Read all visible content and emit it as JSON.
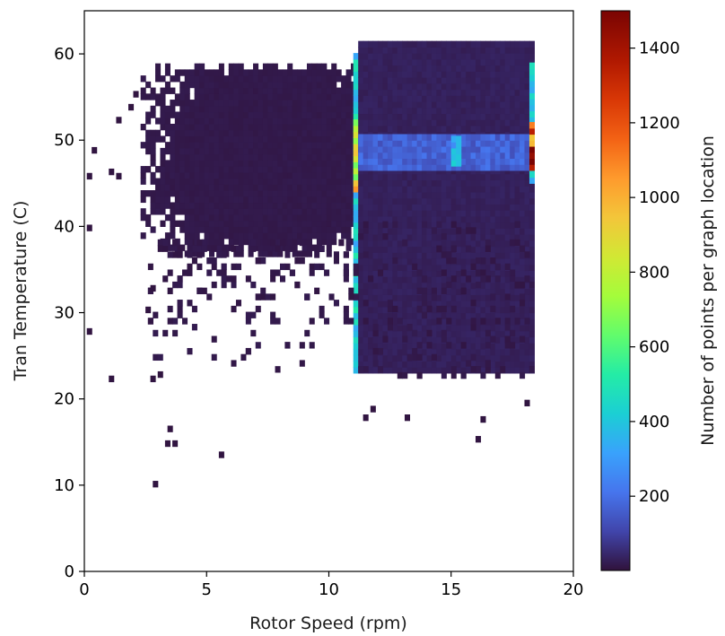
{
  "chart_data": {
    "type": "heatmap",
    "title": "",
    "xlabel": "Rotor Speed (rpm)",
    "ylabel": "Tran Temperature (C)",
    "xlim": [
      0,
      20
    ],
    "ylim": [
      0,
      65
    ],
    "x_ticks": [
      0,
      5,
      10,
      15,
      20
    ],
    "y_ticks": [
      0,
      10,
      20,
      30,
      40,
      50,
      60
    ],
    "bin_width_x": 0.2,
    "bin_width_y": 0.7,
    "grid": false,
    "colorbar": {
      "label": "Number of points per graph location",
      "range": [
        1,
        1500
      ],
      "ticks": [
        200,
        400,
        600,
        800,
        1000,
        1200,
        1400
      ],
      "colormap": "turbo"
    },
    "density_regions": [
      {
        "x": [
          2.3,
          11.0
        ],
        "y": [
          36.5,
          58.5
        ],
        "value": 15
      },
      {
        "x": [
          11.0,
          11.2
        ],
        "y": [
          23.0,
          59.5
        ],
        "value": 420
      },
      {
        "x": [
          11.0,
          11.2
        ],
        "y": [
          44.0,
          52.0
        ],
        "value": 850
      },
      {
        "x": [
          11.2,
          18.3
        ],
        "y": [
          23.0,
          61.0
        ],
        "value": 30
      },
      {
        "x": [
          11.2,
          18.3
        ],
        "y": [
          46.5,
          50.5
        ],
        "value": 170
      },
      {
        "x": [
          15.0,
          15.3
        ],
        "y": [
          47.0,
          50.0
        ],
        "value": 350
      },
      {
        "x": [
          18.2,
          18.4
        ],
        "y": [
          45.0,
          58.5
        ],
        "value": 420
      },
      {
        "x": [
          18.2,
          18.4
        ],
        "y": [
          46.5,
          51.5
        ],
        "value": 1250
      }
    ],
    "outliers": [
      [
        2.8,
        9.8
      ],
      [
        3.3,
        14.5
      ],
      [
        3.6,
        14.5
      ],
      [
        3.4,
        16.2
      ],
      [
        5.5,
        13.2
      ],
      [
        1.0,
        22.0
      ],
      [
        2.7,
        22.0
      ],
      [
        3.0,
        22.5
      ],
      [
        11.4,
        17.5
      ],
      [
        11.7,
        18.5
      ],
      [
        13.1,
        17.5
      ],
      [
        16.0,
        15.0
      ],
      [
        16.2,
        17.3
      ],
      [
        18.0,
        19.2
      ],
      [
        0.1,
        27.5
      ],
      [
        0.1,
        39.5
      ],
      [
        0.1,
        45.5
      ],
      [
        0.3,
        48.5
      ],
      [
        1.0,
        46.0
      ],
      [
        1.3,
        45.5
      ],
      [
        2.5,
        30.0
      ],
      [
        2.7,
        32.5
      ],
      [
        1.3,
        52.0
      ],
      [
        1.8,
        53.5
      ],
      [
        2.0,
        55.0
      ]
    ]
  }
}
